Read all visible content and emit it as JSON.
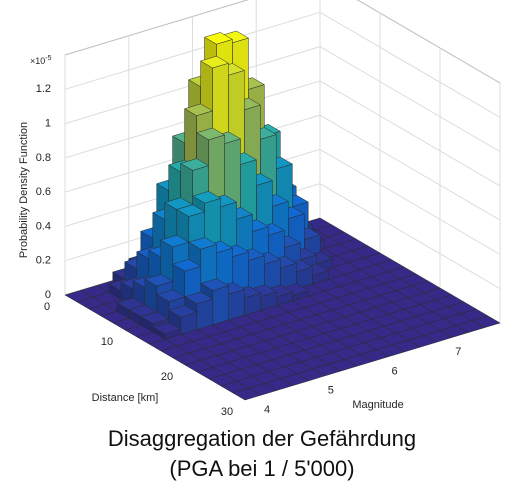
{
  "chart_data": {
    "type": "bar3",
    "title": "Disaggregation der Gefährdung",
    "subtitle": "(PGA bei 1 / 5'000)",
    "zlabel": "Probability Density Function",
    "xlabel": "Distance [km]",
    "ylabel": "Magnitude",
    "exponent_base": "×10",
    "exponent": "-5",
    "distance_bins": [
      0,
      2,
      4,
      6,
      8,
      10,
      12,
      14,
      16,
      18,
      20,
      22,
      24,
      26,
      28,
      30
    ],
    "magnitude_bins": [
      4,
      4.25,
      4.5,
      4.75,
      5,
      5.25,
      5.5,
      5.75,
      6,
      6.25,
      6.5,
      6.75,
      7,
      7.25,
      7.5,
      7.75,
      8
    ],
    "values": [
      [
        0,
        0,
        0,
        0.05,
        0.1,
        0.2,
        0.35,
        0.5,
        0.6,
        0.55,
        0.4,
        0.25,
        0.1,
        0,
        0,
        0
      ],
      [
        0,
        0,
        0.05,
        0.15,
        0.3,
        0.55,
        0.8,
        1.1,
        1.32,
        1.3,
        1.0,
        0.7,
        0.35,
        0.1,
        0,
        0
      ],
      [
        0,
        0,
        0.1,
        0.25,
        0.45,
        0.7,
        1.0,
        1.25,
        1.18,
        0.95,
        0.75,
        0.55,
        0.3,
        0.05,
        0,
        0
      ],
      [
        0,
        0.05,
        0.15,
        0.3,
        0.55,
        0.75,
        0.9,
        0.85,
        0.7,
        0.55,
        0.4,
        0.3,
        0.15,
        0,
        0,
        0
      ],
      [
        0,
        0.05,
        0.2,
        0.4,
        0.55,
        0.6,
        0.55,
        0.45,
        0.35,
        0.3,
        0.2,
        0.1,
        0.05,
        0,
        0,
        0
      ],
      [
        0,
        0.05,
        0.15,
        0.3,
        0.4,
        0.35,
        0.3,
        0.25,
        0.2,
        0.15,
        0.1,
        0.05,
        0,
        0,
        0,
        0
      ],
      [
        0,
        0.03,
        0.1,
        0.15,
        0.2,
        0.15,
        0.1,
        0.08,
        0.05,
        0.03,
        0,
        0,
        0,
        0,
        0,
        0
      ],
      [
        0,
        0,
        0,
        0,
        0,
        0,
        0,
        0,
        0,
        0,
        0,
        0,
        0,
        0,
        0,
        0
      ],
      [
        0,
        0,
        0,
        0,
        0,
        0,
        0,
        0,
        0,
        0,
        0,
        0,
        0,
        0,
        0,
        0
      ],
      [
        0,
        0,
        0,
        0,
        0,
        0,
        0,
        0,
        0,
        0,
        0,
        0,
        0,
        0,
        0,
        0
      ],
      [
        0,
        0,
        0,
        0,
        0,
        0,
        0,
        0,
        0,
        0,
        0,
        0,
        0,
        0,
        0,
        0
      ],
      [
        0,
        0,
        0,
        0,
        0,
        0,
        0,
        0,
        0,
        0,
        0,
        0,
        0,
        0,
        0,
        0
      ],
      [
        0,
        0,
        0,
        0,
        0,
        0,
        0,
        0,
        0,
        0,
        0,
        0,
        0,
        0,
        0,
        0
      ],
      [
        0,
        0,
        0,
        0,
        0,
        0,
        0,
        0,
        0,
        0,
        0,
        0,
        0,
        0,
        0,
        0
      ],
      [
        0,
        0,
        0,
        0,
        0,
        0,
        0,
        0,
        0,
        0,
        0,
        0,
        0,
        0,
        0,
        0
      ]
    ],
    "xlim": [
      0,
      30
    ],
    "xticks": [
      0,
      10,
      20,
      30
    ],
    "ylim": [
      4,
      8
    ],
    "yticks": [
      4,
      5,
      6,
      7
    ],
    "zlim": [
      0,
      1.4
    ],
    "zticks": [
      0,
      0.2,
      0.4,
      0.6,
      0.8,
      1,
      1.2
    ],
    "colormap": [
      "#352a87",
      "#0f6fd8",
      "#14a9b8",
      "#a5be50",
      "#f9fb0e"
    ],
    "grid": true
  }
}
